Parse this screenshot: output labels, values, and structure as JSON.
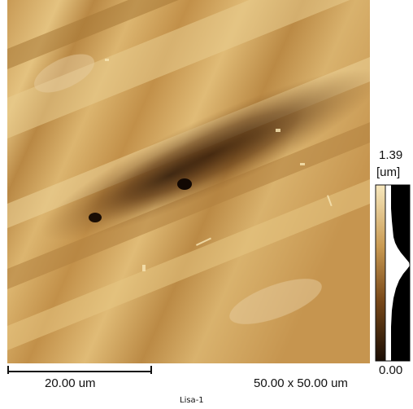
{
  "image": {
    "description_icon": "afm-topography-map",
    "colors": {
      "dark": "#1a0d04",
      "mid": "#a5712f",
      "light": "#f4dfa9"
    }
  },
  "scale_bar": {
    "label": "20.00 um"
  },
  "scan_size": {
    "label": "50.00 x 50.00 um"
  },
  "sample": {
    "label": "Lisa-1"
  },
  "colorbar": {
    "max_label": "1.39",
    "unit_label": "[um]",
    "min_label": "0.00"
  }
}
